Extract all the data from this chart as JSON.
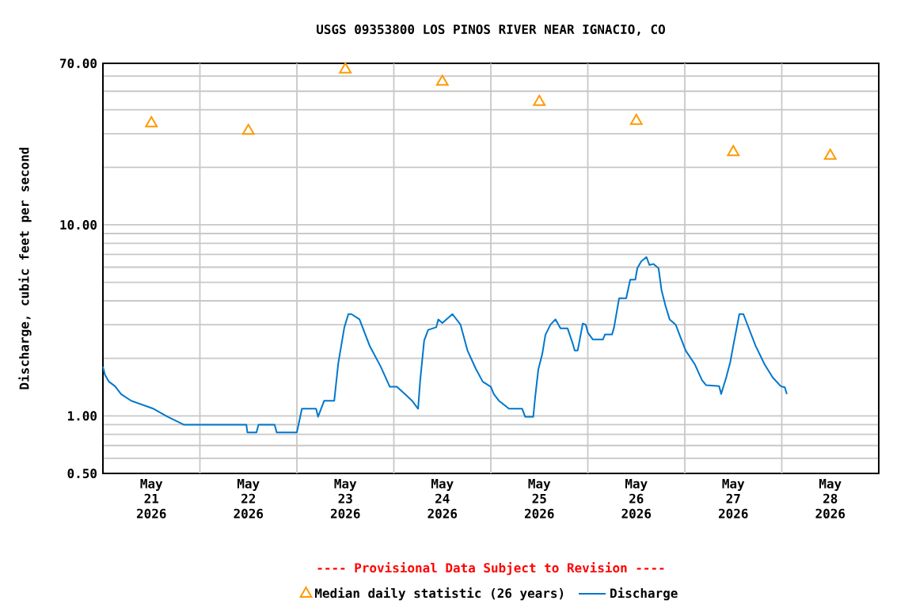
{
  "chart_data": {
    "type": "line",
    "title": "USGS 09353800 LOS PINOS RIVER NEAR IGNACIO, CO",
    "ylabel": "Discharge, cubic feet per second",
    "annotations": [
      "---- Provisional Data Subject to Revision ----"
    ],
    "log": "y",
    "grid": true,
    "legend": "bottom",
    "xlim": [
      "2026-05-21",
      "2026-05-29"
    ],
    "xticks": [
      {
        "value": "2026-05-21T12:00",
        "label": "May 21 2026"
      },
      {
        "value": "2026-05-22T12:00",
        "label": "May 22 2026"
      },
      {
        "value": "2026-05-23T12:00",
        "label": "May 23 2026"
      },
      {
        "value": "2026-05-24T12:00",
        "label": "May 24 2026"
      },
      {
        "value": "2026-05-25T12:00",
        "label": "May 25 2026"
      },
      {
        "value": "2026-05-26T12:00",
        "label": "May 26 2026"
      },
      {
        "value": "2026-05-27T12:00",
        "label": "May 27 2026"
      },
      {
        "value": "2026-05-28T12:00",
        "label": "May 28 2026"
      },
      {
        "value": "2026-05-22",
        "label": null
      },
      {
        "value": "2026-05-23",
        "label": null
      },
      {
        "value": "2026-05-24",
        "label": null
      },
      {
        "value": "2026-05-25",
        "label": null
      },
      {
        "value": "2026-05-26",
        "label": null
      },
      {
        "value": "2026-05-27",
        "label": null
      },
      {
        "value": "2026-05-28",
        "label": null
      }
    ],
    "ylim": [
      0.5,
      70
    ],
    "yticks": [
      {
        "value": 0.5,
        "label": "0.50"
      },
      {
        "value": 0.6,
        "label": null
      },
      {
        "value": 0.7,
        "label": null
      },
      {
        "value": 0.8,
        "label": null
      },
      {
        "value": 0.9,
        "label": null
      },
      {
        "value": 1,
        "label": "1.00"
      },
      {
        "value": 2,
        "label": null
      },
      {
        "value": 3,
        "label": null
      },
      {
        "value": 4,
        "label": null
      },
      {
        "value": 5,
        "label": null
      },
      {
        "value": 6,
        "label": null
      },
      {
        "value": 7,
        "label": null
      },
      {
        "value": 8,
        "label": null
      },
      {
        "value": 9,
        "label": null
      },
      {
        "value": 10,
        "label": "10.00"
      },
      {
        "value": 20,
        "label": null
      },
      {
        "value": 30,
        "label": null
      },
      {
        "value": 40,
        "label": null
      },
      {
        "value": 50,
        "label": null
      },
      {
        "value": 60,
        "label": null
      },
      {
        "value": 70,
        "label": "70.00"
      }
    ],
    "series": [
      {
        "name": "Median daily statistic (26 years)",
        "type": "scatter",
        "marker": "triangle",
        "color": "#ff9900",
        "x": [
          "2026-05-21T12:00",
          "2026-05-22T12:00",
          "2026-05-23T12:00",
          "2026-05-24T12:00",
          "2026-05-25T12:00",
          "2026-05-26T12:00",
          "2026-05-27T12:00",
          "2026-05-28T12:00"
        ],
        "values": [
          34,
          31,
          65,
          56,
          44,
          35,
          24,
          23
        ]
      },
      {
        "name": "Discharge",
        "marker": "none",
        "line_style": "solid",
        "color": "#0077cc",
        "x": [
          "2026-05-21T00:00",
          "2026-05-21T00:30",
          "2026-05-21T01:30",
          "2026-05-21T03:00",
          "2026-05-21T04:30",
          "2026-05-21T07:00",
          "2026-05-21T12:30",
          "2026-05-21T16:00",
          "2026-05-21T20:00",
          "2026-05-22T11:30",
          "2026-05-22T11:45",
          "2026-05-22T14:00",
          "2026-05-22T14:30",
          "2026-05-22T18:30",
          "2026-05-22T19:00",
          "2026-05-23T00:00",
          "2026-05-23T01:15",
          "2026-05-23T04:45",
          "2026-05-23T05:15",
          "2026-05-23T06:45",
          "2026-05-23T09:15",
          "2026-05-23T10:15",
          "2026-05-23T11:45",
          "2026-05-23T12:45",
          "2026-05-23T13:30",
          "2026-05-23T15:30",
          "2026-05-23T18:00",
          "2026-05-23T20:45",
          "2026-05-23T23:00",
          "2026-05-24T00:45",
          "2026-05-24T02:45",
          "2026-05-24T04:30",
          "2026-05-24T06:00",
          "2026-05-24T06:30",
          "2026-05-24T07:30",
          "2026-05-24T08:30",
          "2026-05-24T10:30",
          "2026-05-24T11:00",
          "2026-05-24T12:00",
          "2026-05-24T14:30",
          "2026-05-24T16:30",
          "2026-05-24T18:15",
          "2026-05-24T20:15",
          "2026-05-24T22:00",
          "2026-05-25T00:00",
          "2026-05-25T00:45",
          "2026-05-25T02:00",
          "2026-05-25T04:30",
          "2026-05-25T07:45",
          "2026-05-25T08:30",
          "2026-05-25T10:30",
          "2026-05-25T11:00",
          "2026-05-25T11:45",
          "2026-05-25T12:45",
          "2026-05-25T13:30",
          "2026-05-25T14:45",
          "2026-05-25T16:00",
          "2026-05-25T17:15",
          "2026-05-25T19:00",
          "2026-05-25T20:15",
          "2026-05-25T20:45",
          "2026-05-25T21:30",
          "2026-05-25T22:45",
          "2026-05-25T23:30",
          "2026-05-26T00:00",
          "2026-05-26T01:15",
          "2026-05-26T03:45",
          "2026-05-26T04:15",
          "2026-05-26T06:00",
          "2026-05-26T06:30",
          "2026-05-26T07:45",
          "2026-05-26T09:30",
          "2026-05-26T10:30",
          "2026-05-26T11:45",
          "2026-05-26T12:15",
          "2026-05-26T13:15",
          "2026-05-26T14:30",
          "2026-05-26T15:15",
          "2026-05-26T16:15",
          "2026-05-26T17:30",
          "2026-05-26T18:15",
          "2026-05-26T19:15",
          "2026-05-26T20:15",
          "2026-05-26T21:45",
          "2026-05-26T23:00",
          "2026-05-27T00:15",
          "2026-05-27T02:30",
          "2026-05-27T04:15",
          "2026-05-27T05:15",
          "2026-05-27T08:30",
          "2026-05-27T09:00",
          "2026-05-27T09:30",
          "2026-05-27T10:15",
          "2026-05-27T11:15",
          "2026-05-27T12:00",
          "2026-05-27T13:30",
          "2026-05-27T14:30",
          "2026-05-27T15:15",
          "2026-05-27T17:30",
          "2026-05-27T19:45",
          "2026-05-27T21:45",
          "2026-05-27T23:45",
          "2026-05-28T00:45",
          "2026-05-28T01:15"
        ],
        "values": [
          1.81,
          1.64,
          1.51,
          1.43,
          1.3,
          1.2,
          1.09,
          0.99,
          0.9,
          0.9,
          0.82,
          0.82,
          0.9,
          0.9,
          0.82,
          0.82,
          1.09,
          1.09,
          0.99,
          1.2,
          1.2,
          1.89,
          2.91,
          3.41,
          3.41,
          3.2,
          2.33,
          1.81,
          1.42,
          1.42,
          1.3,
          1.2,
          1.09,
          1.52,
          2.48,
          2.82,
          2.91,
          3.2,
          3.06,
          3.41,
          3.0,
          2.19,
          1.77,
          1.51,
          1.42,
          1.3,
          1.2,
          1.09,
          1.09,
          0.99,
          0.99,
          1.27,
          1.75,
          2.12,
          2.65,
          3.0,
          3.2,
          2.87,
          2.87,
          2.4,
          2.2,
          2.2,
          3.04,
          3.0,
          2.73,
          2.51,
          2.51,
          2.67,
          2.67,
          2.91,
          4.13,
          4.13,
          5.16,
          5.16,
          5.93,
          6.44,
          6.78,
          6.16,
          6.24,
          5.93,
          4.54,
          3.75,
          3.2,
          3.0,
          2.56,
          2.19,
          1.86,
          1.54,
          1.45,
          1.43,
          1.3,
          1.41,
          1.59,
          1.91,
          2.33,
          3.41,
          3.41,
          3.1,
          2.33,
          1.86,
          1.59,
          1.43,
          1.41,
          1.3
        ]
      }
    ]
  }
}
